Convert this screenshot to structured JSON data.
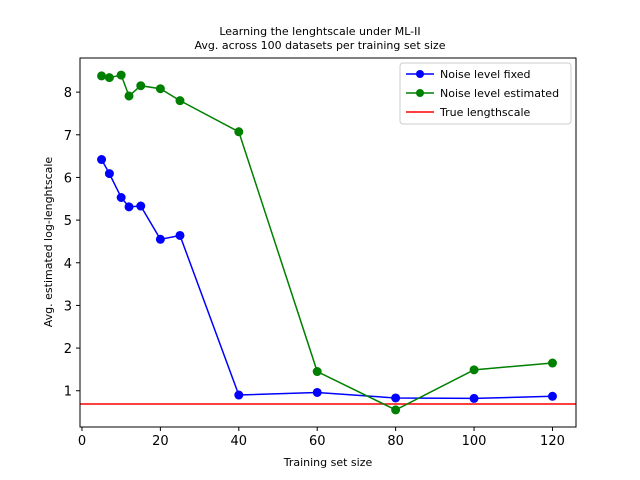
{
  "chart_data": {
    "type": "line",
    "title": "Learning the lenghtscale under ML-II",
    "subtitle": "Avg. across 100 datasets per training set size",
    "xlabel": "Training set size",
    "ylabel": "Avg. estimated log-lenghtscale",
    "xlim": [
      -0.5,
      126
    ],
    "ylim": [
      0.15,
      8.8
    ],
    "xticks": [
      0,
      20,
      40,
      60,
      80,
      100,
      120
    ],
    "yticks": [
      1,
      2,
      3,
      4,
      5,
      6,
      7,
      8
    ],
    "legend_position": "top-right",
    "grid": false,
    "series": [
      {
        "name": "Noise level fixed",
        "color": "#0000ff",
        "x": [
          5,
          7,
          10,
          12,
          15,
          20,
          25,
          40,
          60,
          80,
          100,
          120
        ],
        "y": [
          6.42,
          6.09,
          5.53,
          5.31,
          5.33,
          4.55,
          4.64,
          0.9,
          0.96,
          0.83,
          0.82,
          0.87
        ]
      },
      {
        "name": "Noise level estimated",
        "color": "#008000",
        "x": [
          5,
          7,
          10,
          12,
          15,
          20,
          25,
          40,
          60,
          80,
          100,
          120
        ],
        "y": [
          8.38,
          8.34,
          8.4,
          7.91,
          8.15,
          8.08,
          7.8,
          7.07,
          1.45,
          0.55,
          1.49,
          1.65
        ]
      }
    ],
    "hlines": [
      {
        "name": "True lengthscale",
        "color": "#ff0000",
        "y": 0.69
      }
    ]
  }
}
